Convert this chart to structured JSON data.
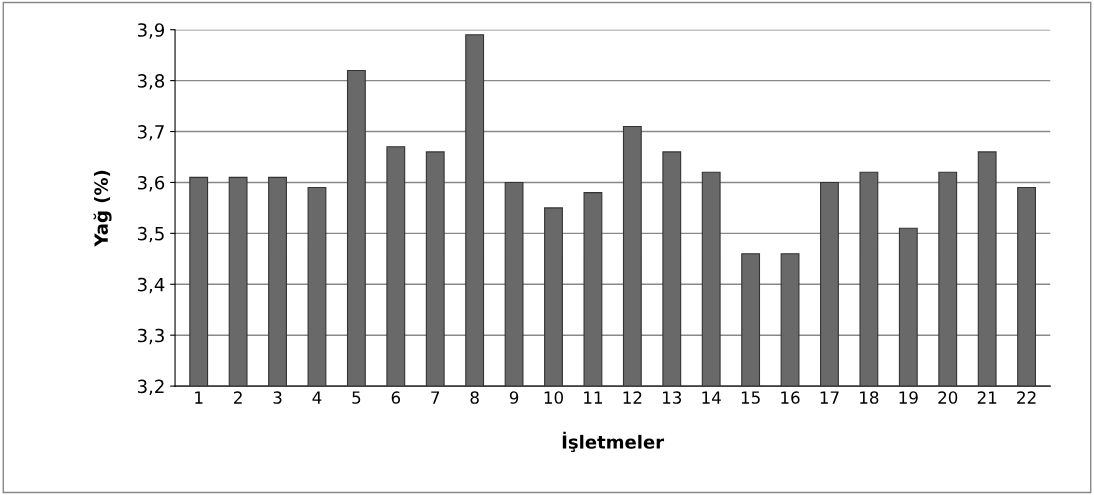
{
  "chart_data": {
    "type": "bar",
    "xlabel": "İşletmeler",
    "ylabel": "Yağ (%)",
    "categories": [
      "1",
      "2",
      "3",
      "4",
      "5",
      "6",
      "7",
      "8",
      "9",
      "10",
      "11",
      "12",
      "13",
      "14",
      "15",
      "16",
      "17",
      "18",
      "19",
      "20",
      "21",
      "22"
    ],
    "values": [
      3.61,
      3.61,
      3.61,
      3.59,
      3.82,
      3.67,
      3.66,
      3.89,
      3.6,
      3.55,
      3.58,
      3.71,
      3.66,
      3.62,
      3.46,
      3.46,
      3.6,
      3.62,
      3.51,
      3.62,
      3.66,
      3.59
    ],
    "color": "#696969",
    "ylim": [
      3.2,
      3.9
    ],
    "yticks": [
      {
        "value": 3.2,
        "label": "3,2"
      },
      {
        "value": 3.3,
        "label": "3,3"
      },
      {
        "value": 3.4,
        "label": "3,4"
      },
      {
        "value": 3.5,
        "label": "3,5"
      },
      {
        "value": 3.6,
        "label": "3,6"
      },
      {
        "value": 3.7,
        "label": "3,7"
      },
      {
        "value": 3.8,
        "label": "3,8"
      },
      {
        "value": 3.9,
        "label": "3,9"
      }
    ],
    "grid": "y"
  }
}
